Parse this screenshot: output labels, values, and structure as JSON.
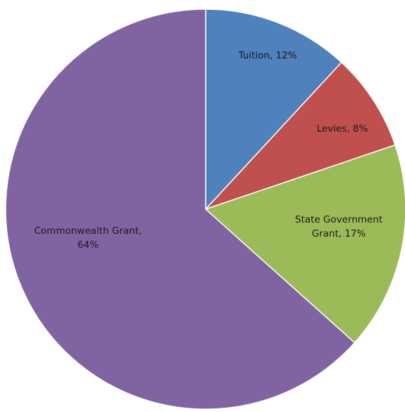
{
  "chart_data": {
    "type": "pie",
    "title": "",
    "start_angle_deg": 0,
    "direction": "clockwise",
    "legend": "none",
    "slices": [
      {
        "name": "Tuition",
        "value": 12,
        "label_lines": [
          "Tuition, 12%"
        ],
        "color": "#4f81bd"
      },
      {
        "name": "Levies",
        "value": 8,
        "label_lines": [
          "Levies, 8%"
        ],
        "color": "#c0504d"
      },
      {
        "name": "State Government Grant",
        "value": 17,
        "label_lines": [
          "State Government",
          "Grant, 17%"
        ],
        "color": "#9bbb59"
      },
      {
        "name": "Commonwealth Grant",
        "value": 64,
        "label_lines": [
          "Commonwealth Grant,",
          "64%"
        ],
        "color": "#8064a2"
      }
    ]
  }
}
